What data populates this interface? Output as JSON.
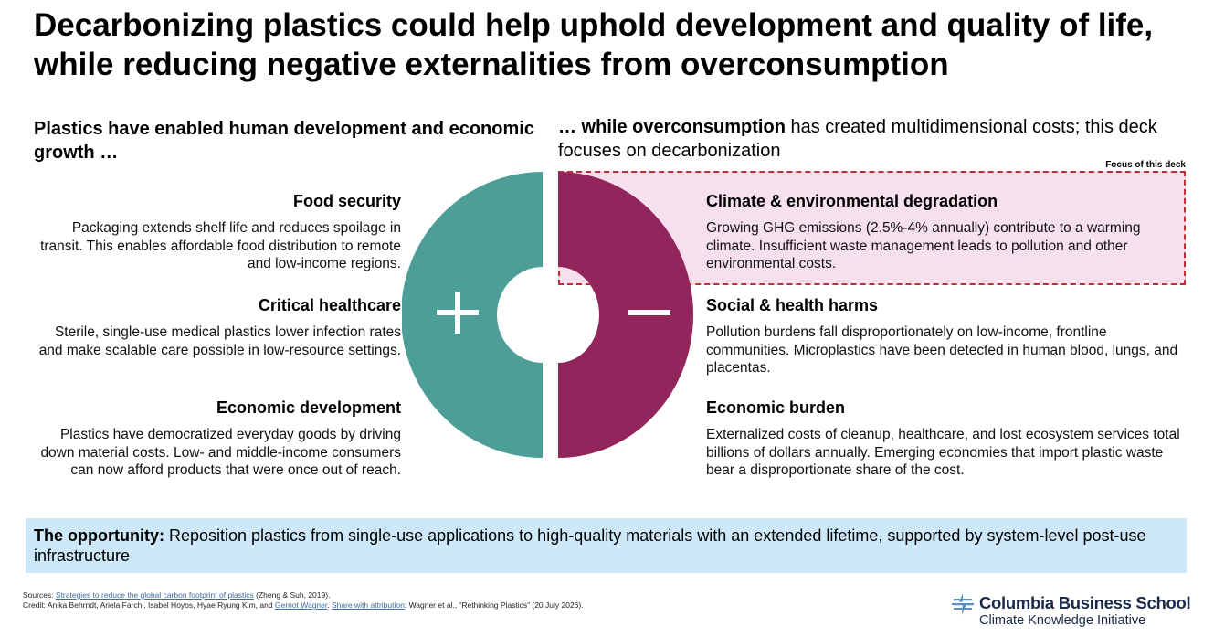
{
  "title": "Decarbonizing plastics could help uphold development and quality of life, while reducing negative externalities from overconsumption",
  "left_heading": "Plastics have enabled human development and economic growth …",
  "right_heading": {
    "bold": "… while overconsumption",
    "rest": " has created multidimensional costs; this deck focuses on decarbonization"
  },
  "focus_label": "Focus of this deck",
  "left_items": [
    {
      "heading": "Food security",
      "text": "Packaging extends shelf life and reduces spoilage in transit. This enables affordable food distribution to remote and low-income regions."
    },
    {
      "heading": "Critical healthcare",
      "text": "Sterile, single-use medical plastics lower infection rates and make scalable care possible in low-resource settings."
    },
    {
      "heading": "Economic development",
      "text": "Plastics have democratized everyday goods by driving down material costs. Low- and middle-income consumers can now afford products that were once out of reach."
    }
  ],
  "right_items": [
    {
      "heading": "Climate & environmental degradation",
      "text": "Growing GHG emissions (2.5%-4% annually) contribute to a warming climate. Insufficient waste management leads to pollution and other environmental costs."
    },
    {
      "heading": "Social & health harms",
      "text": "Pollution burdens fall disproportionately on low-income, frontline communities. Microplastics have been detected in human blood, lungs, and placentas."
    },
    {
      "heading": "Economic burden",
      "text": "Externalized costs of cleanup, healthcare, and lost ecosystem services total billions of dollars annually. Emerging economies that import plastic waste bear a disproportionate share of the cost."
    }
  ],
  "donut": {
    "left_symbol": "+",
    "right_symbol": "−",
    "left_color": "#4e9e98",
    "right_color": "#92265c"
  },
  "opportunity": {
    "label": "The opportunity:",
    "text": " Reposition plastics from single-use applications to high-quality materials with an extended lifetime, supported by system-level post-use infrastructure"
  },
  "sources": {
    "prefix": "Sources: ",
    "link": "Strategies to reduce the global carbon footprint of plastics",
    "suffix": " (Zheng & Suh, 2019)."
  },
  "credit": {
    "prefix": "Credit: Anika Behrndt, Ariela Farchi, Isabel Hoyos, Hyae Ryung Kim, and ",
    "author_link": "Gernot Wagner",
    "mid": ". ",
    "share_link": "Share with attribution",
    "suffix": ": Wagner et al., “Rethinking Plastics” (20 July 2026)."
  },
  "logo": {
    "name": "Columbia Business School",
    "sub": "Climate Knowledge Initiative"
  },
  "colors": {
    "teal": "#4e9e98",
    "magenta": "#92265c",
    "focus_fill": "#f6e0ee",
    "focus_border": "#c0302e",
    "opportunity_fill": "#cde9f9"
  }
}
